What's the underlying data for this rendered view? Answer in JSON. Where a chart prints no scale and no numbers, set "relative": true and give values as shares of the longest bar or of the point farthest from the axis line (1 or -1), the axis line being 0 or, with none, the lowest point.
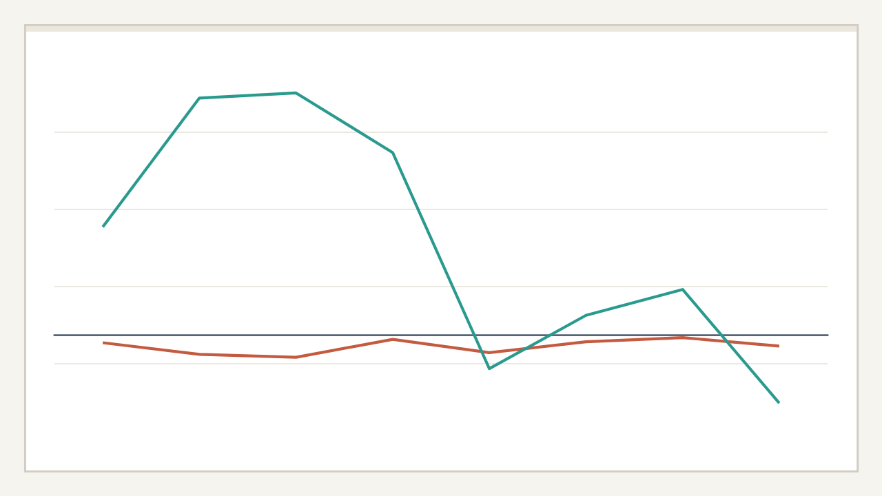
{
  "chart_data": {
    "type": "line",
    "relative": true,
    "categories": [
      null,
      null,
      null,
      null,
      null,
      null,
      null,
      null
    ],
    "series": [
      {
        "color": "#c45a3f",
        "values": [
          -0.031,
          -0.079,
          -0.091,
          -0.017,
          -0.072,
          -0.027,
          -0.01,
          -0.045
        ]
      },
      {
        "color": "#2a9a8f",
        "values": [
          0.447,
          0.979,
          1.0,
          0.754,
          -0.138,
          0.082,
          0.189,
          -0.28
        ]
      }
    ],
    "grid": "y",
    "line_style": "solid"
  }
}
